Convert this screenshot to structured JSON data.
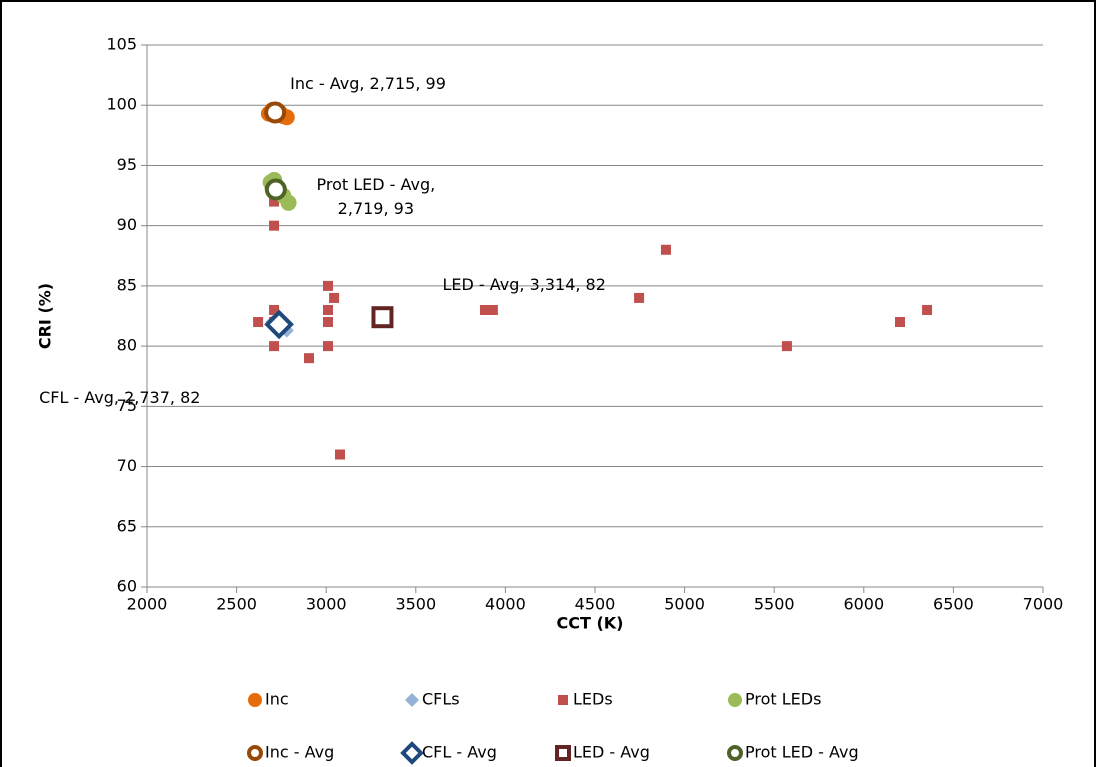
{
  "chart_data": {
    "type": "scatter",
    "x_label": "CCT (K)",
    "y_label": "CRI (%)",
    "xlim": [
      2000,
      7000
    ],
    "xticks": [
      2000,
      2500,
      3000,
      3500,
      4000,
      4500,
      5000,
      5500,
      6000,
      6500,
      7000
    ],
    "ylim": [
      60,
      105
    ],
    "yticks": [
      60,
      65,
      70,
      75,
      80,
      85,
      90,
      95,
      100,
      105
    ],
    "grid": true,
    "legend": "bottom",
    "series": [
      {
        "name": "Inc",
        "color": "#e46c0a",
        "marker": "circle",
        "x": [
          2680,
          2700,
          2720,
          2740,
          2760,
          2780
        ],
        "values": [
          99.3,
          99.6,
          99.2,
          99.4,
          99.1,
          99.0
        ]
      },
      {
        "name": "CFLs",
        "color": "#95b3d7",
        "marker": "diamond",
        "x": [
          2700,
          2720,
          2740,
          2780
        ],
        "values": [
          82.0,
          81.5,
          82.2,
          81.3
        ]
      },
      {
        "name": "LEDs",
        "color": "#c0504d",
        "marker": "square",
        "x": [
          2620,
          2709,
          2709,
          2709,
          2709,
          2709,
          2904,
          3010,
          3010,
          3010,
          3010,
          3044,
          3077,
          3886,
          3930,
          4746,
          4896,
          5571,
          6202,
          6353
        ],
        "values": [
          82,
          83,
          82,
          80,
          90,
          92,
          79,
          85,
          83,
          82,
          80,
          84,
          71,
          83,
          83,
          84,
          88,
          80,
          82,
          83
        ]
      },
      {
        "name": "Prot LEDs",
        "color": "#9bbb59",
        "marker": "circle",
        "x": [
          2690,
          2710,
          2700,
          2760,
          2790
        ],
        "values": [
          93.6,
          93.8,
          93.2,
          92.5,
          91.9
        ]
      },
      {
        "name": "Inc - Avg",
        "color": "#984807",
        "marker": "circle-hollow",
        "x": [
          2715
        ],
        "values": [
          99.4
        ],
        "value_labels": [
          "Inc - Avg, 2,715, 99"
        ]
      },
      {
        "name": "CFL - Avg",
        "color": "#1f497d",
        "marker": "diamond-hollow",
        "x": [
          2737
        ],
        "values": [
          81.8
        ],
        "value_labels": [
          "CFL - Avg, 2,737, 82"
        ]
      },
      {
        "name": "LED - Avg",
        "color": "#632523",
        "marker": "square-hollow",
        "x": [
          3314
        ],
        "values": [
          82.4
        ],
        "value_labels": [
          "LED - Avg, 3,314, 82"
        ]
      },
      {
        "name": "Prot LED - Avg",
        "color": "#4f6228",
        "marker": "circle-hollow",
        "x": [
          2719
        ],
        "values": [
          93.0
        ],
        "value_labels": [
          "Prot LED - Avg, 2,719, 93"
        ]
      }
    ]
  }
}
